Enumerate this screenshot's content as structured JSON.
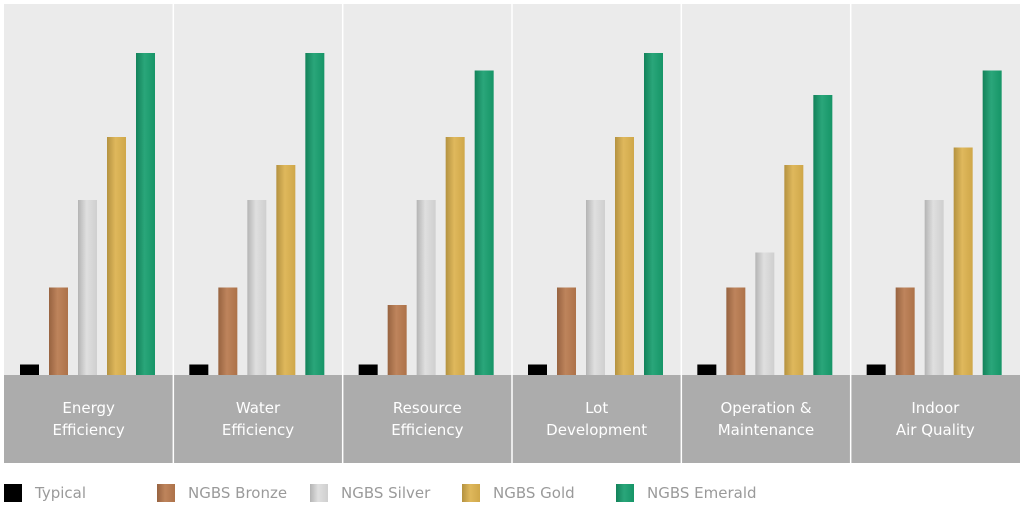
{
  "chart_data": {
    "type": "bar",
    "title": "",
    "xlabel": "",
    "ylabel": "",
    "ylim": [
      0,
      100
    ],
    "grid": false,
    "legend_position": "bottom",
    "categories": [
      [
        "Energy",
        "Efficiency"
      ],
      [
        "Water",
        "Efficiency"
      ],
      [
        "Resource",
        "Efficiency"
      ],
      [
        "Lot",
        "Development"
      ],
      [
        "Operation &",
        "Maintenance"
      ],
      [
        "Indoor",
        "Air Quality"
      ]
    ],
    "series": [
      {
        "name": "Typical",
        "color": "#000000",
        "values": [
          3,
          3,
          3,
          3,
          3,
          3
        ]
      },
      {
        "name": "NGBS Bronze",
        "color": "#b8794e",
        "values": [
          25,
          25,
          20,
          25,
          25,
          25
        ]
      },
      {
        "name": "NGBS Silver",
        "color": "#dcdcdc",
        "values": [
          50,
          50,
          50,
          50,
          35,
          50
        ]
      },
      {
        "name": "NGBS Gold",
        "color": "#dcb24e",
        "values": [
          68,
          60,
          68,
          68,
          60,
          65
        ]
      },
      {
        "name": "NGBS Emerald",
        "color": "#179e6e",
        "values": [
          92,
          92,
          87,
          92,
          80,
          87
        ]
      }
    ],
    "colors": {
      "plot_background": "#ebebeb",
      "label_band": "#acacac",
      "divider": "#ffffff"
    }
  }
}
